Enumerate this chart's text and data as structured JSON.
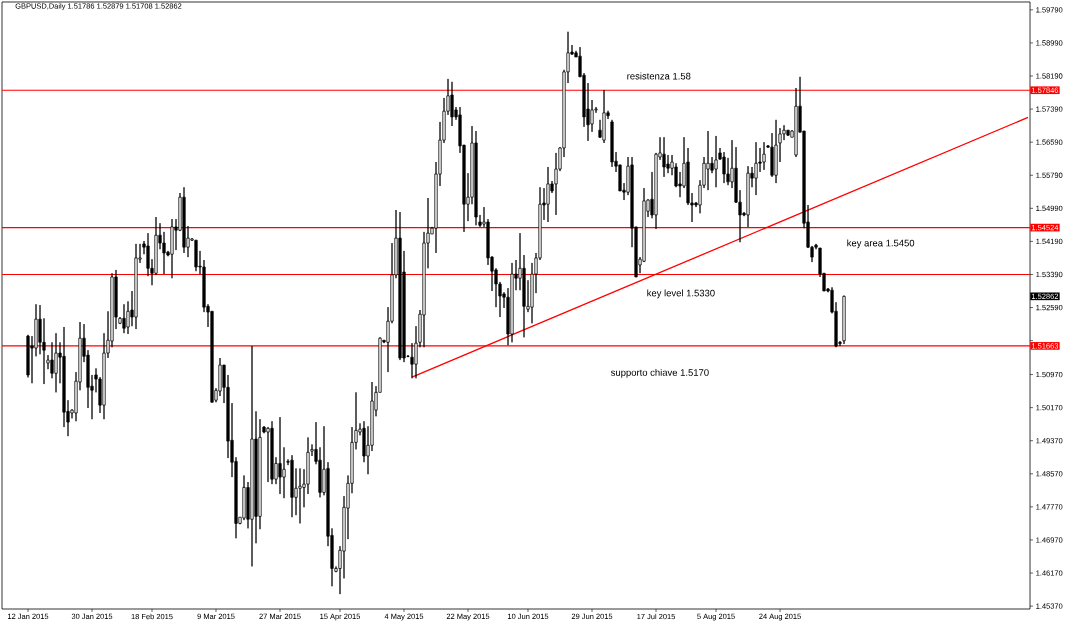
{
  "chart_data": {
    "type": "candlestick",
    "title": "GBPUSD,Daily 1.51786 1.52879 1.51708 1.52862",
    "categories": [
      "12 Jan 2015",
      null,
      null,
      null,
      null,
      null,
      null,
      null,
      null,
      null,
      null,
      null,
      null,
      null,
      null,
      null,
      "30 Jan 2015",
      null,
      null,
      null,
      null,
      null,
      null,
      null,
      null,
      null,
      null,
      null,
      null,
      null,
      null,
      "18 Feb 2015",
      null,
      null,
      null,
      null,
      null,
      null,
      null,
      null,
      null,
      null,
      null,
      null,
      null,
      null,
      null,
      "9 Mar 2015",
      null,
      null,
      null,
      null,
      null,
      null,
      null,
      null,
      null,
      null,
      null,
      null,
      null,
      null,
      null,
      "27 Mar 2015",
      null,
      null,
      null,
      null,
      null,
      null,
      null,
      null,
      null,
      null,
      null,
      null,
      null,
      null,
      "15 Apr 2015",
      null,
      null,
      null,
      null,
      null,
      null,
      null,
      null,
      null,
      null,
      null,
      null,
      null,
      null,
      null,
      "4 May 2015",
      null,
      null,
      null,
      null,
      null,
      null,
      null,
      null,
      null,
      null,
      null,
      null,
      null,
      null,
      null,
      "22 May 2015",
      null,
      null,
      null,
      null,
      null,
      null,
      null,
      null,
      null,
      null,
      null,
      null,
      null,
      null,
      "10 Jun 2015",
      null,
      null,
      null,
      null,
      null,
      null,
      null,
      null,
      null,
      null,
      null,
      null,
      null,
      null,
      null,
      "29 Jun 2015",
      null,
      null,
      null,
      null,
      null,
      null,
      null,
      null,
      null,
      null,
      null,
      null,
      null,
      null,
      null,
      "17 Jul 2015",
      null,
      null,
      null,
      null,
      null,
      null,
      null,
      null,
      null,
      null,
      null,
      null,
      null,
      null,
      "5 Aug 2015",
      null,
      null,
      null,
      null,
      null,
      null,
      null,
      null,
      null,
      null,
      null,
      null,
      null,
      null,
      null,
      "24 Aug 2015",
      null,
      null,
      null,
      null,
      null,
      null,
      null,
      null,
      null,
      null,
      null,
      null,
      null,
      null,
      null,
      null,
      null,
      null,
      null,
      null,
      null,
      null,
      null,
      null,
      null,
      null,
      null,
      null,
      null,
      null,
      null,
      null,
      null,
      null,
      null,
      null,
      null,
      null,
      null,
      null,
      null,
      null,
      null,
      null,
      null,
      null,
      null,
      null,
      null,
      null,
      null,
      null,
      null,
      null,
      null,
      null,
      null,
      null,
      null,
      null,
      null,
      null
    ],
    "ohlc": [
      [
        1.519,
        1.5193,
        1.509,
        1.5096
      ],
      [
        1.5166,
        1.519,
        1.5076,
        1.5161
      ],
      [
        1.5161,
        1.5267,
        1.5141,
        1.5231
      ],
      [
        1.5231,
        1.5265,
        1.5146,
        1.5175
      ],
      [
        1.5175,
        1.5233,
        1.5074,
        1.5156
      ],
      [
        1.5125,
        1.5144,
        1.511,
        1.5132
      ],
      [
        1.5132,
        1.5175,
        1.5088,
        1.51
      ],
      [
        1.51,
        1.5197,
        1.5054,
        1.5149
      ],
      [
        1.5149,
        1.5175,
        1.5076,
        1.5139
      ],
      [
        1.5141,
        1.5212,
        1.497,
        1.5006
      ],
      [
        1.5008,
        1.5035,
        1.4948,
        1.4982
      ],
      [
        1.5004,
        1.5013,
        1.4991,
        1.5011
      ],
      [
        1.5004,
        1.5103,
        1.4984,
        1.5081
      ],
      [
        1.5079,
        1.5224,
        1.5059,
        1.5185
      ],
      [
        1.5185,
        1.5219,
        1.5127,
        1.5141
      ],
      [
        1.5144,
        1.5156,
        1.5016,
        1.5066
      ],
      [
        1.5069,
        1.5096,
        1.4989,
        1.5059
      ],
      [
        1.5096,
        1.5112,
        1.5054,
        1.5086
      ],
      [
        1.5086,
        1.5091,
        1.5004,
        1.5023
      ],
      [
        1.5023,
        1.5197,
        1.4989,
        1.5149
      ],
      [
        1.5149,
        1.525,
        1.5137,
        1.518
      ],
      [
        1.5178,
        1.5342,
        1.5163,
        1.5333
      ],
      [
        1.5333,
        1.535,
        1.5207,
        1.5236
      ],
      [
        1.5221,
        1.5236,
        1.5219,
        1.5233
      ],
      [
        1.5233,
        1.5267,
        1.5197,
        1.5209
      ],
      [
        1.5212,
        1.5274,
        1.5195,
        1.525
      ],
      [
        1.5253,
        1.5299,
        1.5214,
        1.5236
      ],
      [
        1.5236,
        1.5413,
        1.5207,
        1.5379
      ],
      [
        1.5376,
        1.5413,
        1.5367,
        1.5379
      ],
      [
        1.5413,
        1.542,
        1.5388,
        1.5405
      ],
      [
        1.5408,
        1.5439,
        1.5335,
        1.5354
      ],
      [
        1.5354,
        1.5376,
        1.5313,
        1.5342
      ],
      [
        1.5342,
        1.5478,
        1.5338,
        1.5434
      ],
      [
        1.5434,
        1.5463,
        1.54,
        1.5415
      ],
      [
        1.5415,
        1.5442,
        1.534,
        1.5391
      ],
      [
        1.5393,
        1.5396,
        1.5383,
        1.5386
      ],
      [
        1.5388,
        1.5473,
        1.533,
        1.5454
      ],
      [
        1.5454,
        1.5473,
        1.5398,
        1.5446
      ],
      [
        1.5446,
        1.5536,
        1.5444,
        1.5526
      ],
      [
        1.5526,
        1.555,
        1.5391,
        1.5405
      ],
      [
        1.5405,
        1.5456,
        1.5381,
        1.5427
      ],
      [
        1.5422,
        1.5427,
        1.542,
        1.5425
      ],
      [
        1.5422,
        1.5422,
        1.5347,
        1.5357
      ],
      [
        1.5359,
        1.5396,
        1.534,
        1.5357
      ],
      [
        1.5357,
        1.5374,
        1.5248,
        1.526
      ],
      [
        1.5262,
        1.5267,
        1.5212,
        1.5248
      ],
      [
        1.525,
        1.525,
        1.503,
        1.503
      ],
      [
        1.5035,
        1.5064,
        1.503,
        1.5059
      ],
      [
        1.5057,
        1.5137,
        1.5045,
        1.512
      ],
      [
        1.512,
        1.512,
        1.5028,
        1.5066
      ],
      [
        1.5066,
        1.5096,
        1.4895,
        1.4936
      ],
      [
        1.4938,
        1.5028,
        1.4849,
        1.4885
      ],
      [
        1.4887,
        1.4897,
        1.4701,
        1.4737
      ],
      [
        1.4737,
        1.4752,
        1.4735,
        1.4752
      ],
      [
        1.475,
        1.4853,
        1.4745,
        1.4824
      ],
      [
        1.4824,
        1.4837,
        1.4725,
        1.4747
      ],
      [
        1.4747,
        1.5166,
        1.4633,
        1.4941
      ],
      [
        1.4941,
        1.5008,
        1.4689,
        1.4754
      ],
      [
        1.4754,
        1.4989,
        1.4723,
        1.4945
      ],
      [
        1.497,
        1.4972,
        1.4955,
        1.4958
      ],
      [
        1.4958,
        1.497,
        1.4837,
        1.4967
      ],
      [
        1.4967,
        1.4984,
        1.4832,
        1.4844
      ],
      [
        1.4844,
        1.4897,
        1.4832,
        1.4882
      ],
      [
        1.4882,
        1.4994,
        1.4808,
        1.4849
      ],
      [
        1.4849,
        1.4921,
        1.4798,
        1.4868
      ],
      [
        1.4887,
        1.4892,
        1.4878,
        1.4885
      ],
      [
        1.489,
        1.4902,
        1.4752,
        1.48
      ],
      [
        1.48,
        1.487,
        1.4757,
        1.4822
      ],
      [
        1.4822,
        1.487,
        1.4737,
        1.4827
      ],
      [
        1.4824,
        1.4868,
        1.4776,
        1.4832
      ],
      [
        1.4832,
        1.4945,
        1.4808,
        1.4909
      ],
      [
        1.4912,
        1.4928,
        1.49,
        1.4916
      ],
      [
        1.4916,
        1.4982,
        1.488,
        1.4887
      ],
      [
        1.489,
        1.4921,
        1.48,
        1.4812
      ],
      [
        1.4812,
        1.4972,
        1.4805,
        1.4868
      ],
      [
        1.487,
        1.4885,
        1.4682,
        1.4706
      ],
      [
        1.4708,
        1.4725,
        1.4585,
        1.4628
      ],
      [
        1.4621,
        1.4633,
        1.4619,
        1.4628
      ],
      [
        1.4628,
        1.4682,
        1.4566,
        1.4672
      ],
      [
        1.467,
        1.4803,
        1.4604,
        1.4776
      ],
      [
        1.4774,
        1.4853,
        1.4699,
        1.4834
      ],
      [
        1.4834,
        1.497,
        1.481,
        1.4933
      ],
      [
        1.4933,
        1.5054,
        1.4916,
        1.4962
      ],
      [
        1.4958,
        1.4979,
        1.495,
        1.4965
      ],
      [
        1.4967,
        1.4984,
        1.4885,
        1.49
      ],
      [
        1.49,
        1.4972,
        1.4856,
        1.4926
      ],
      [
        1.4926,
        1.5079,
        1.4912,
        1.5033
      ],
      [
        1.5011,
        1.5069,
        1.4996,
        1.5054
      ],
      [
        1.5054,
        1.5187,
        1.5054,
        1.5185
      ],
      [
        1.518,
        1.518,
        1.5173,
        1.5176
      ],
      [
        1.5175,
        1.526,
        1.5103,
        1.5226
      ],
      [
        1.5226,
        1.5415,
        1.5221,
        1.5338
      ],
      [
        1.5338,
        1.5495,
        1.533,
        1.5427
      ],
      [
        1.5427,
        1.549,
        1.5132,
        1.5137
      ],
      [
        1.5345,
        1.5396,
        1.5127,
        1.5137
      ],
      [
        1.5141,
        1.5144,
        1.5139,
        1.5141
      ],
      [
        1.5139,
        1.5173,
        1.5088,
        1.5122
      ],
      [
        1.5122,
        1.5214,
        1.5088,
        1.5173
      ],
      [
        1.5175,
        1.5253,
        1.5163,
        1.5243
      ],
      [
        1.5241,
        1.5442,
        1.5163,
        1.5415
      ],
      [
        1.5415,
        1.5524,
        1.5354,
        1.5439
      ],
      [
        1.5437,
        1.5454,
        1.5437,
        1.5451
      ],
      [
        1.5451,
        1.5611,
        1.5391,
        1.5582
      ],
      [
        1.5582,
        1.5708,
        1.5553,
        1.5664
      ],
      [
        1.5664,
        1.5766,
        1.5657,
        1.5734
      ],
      [
        1.5734,
        1.5812,
        1.5725,
        1.5771
      ],
      [
        1.5773,
        1.5805,
        1.5698,
        1.572
      ],
      [
        1.5737,
        1.5744,
        1.5713,
        1.572
      ],
      [
        1.5725,
        1.5744,
        1.5633,
        1.565
      ],
      [
        1.5652,
        1.5652,
        1.5442,
        1.5509
      ],
      [
        1.5509,
        1.5584,
        1.5468,
        1.5526
      ],
      [
        1.5526,
        1.5698,
        1.5509,
        1.5657
      ],
      [
        1.5657,
        1.5686,
        1.5458,
        1.5478
      ],
      [
        1.5466,
        1.5483,
        1.5454,
        1.5458
      ],
      [
        1.5461,
        1.5502,
        1.5454,
        1.5466
      ],
      [
        1.5466,
        1.5473,
        1.5362,
        1.5379
      ],
      [
        1.5381,
        1.5383,
        1.5299,
        1.5347
      ],
      [
        1.535,
        1.5354,
        1.526,
        1.5316
      ],
      [
        1.5316,
        1.5321,
        1.5236,
        1.5287
      ],
      [
        1.5292,
        1.5296,
        1.5258,
        1.5284
      ],
      [
        1.5284,
        1.5306,
        1.5168,
        1.5195
      ],
      [
        1.5195,
        1.5367,
        1.5175,
        1.534
      ],
      [
        1.534,
        1.5374,
        1.5301,
        1.533
      ],
      [
        1.533,
        1.5439,
        1.5301,
        1.5354
      ],
      [
        1.5354,
        1.5386,
        1.5187,
        1.5262
      ],
      [
        1.5255,
        1.5325,
        1.5248,
        1.5262
      ],
      [
        1.526,
        1.5367,
        1.5221,
        1.534
      ],
      [
        1.534,
        1.5391,
        1.5294,
        1.5379
      ],
      [
        1.5379,
        1.555,
        1.5374,
        1.5509
      ],
      [
        1.5512,
        1.5548,
        1.5471,
        1.5507
      ],
      [
        1.5509,
        1.5599,
        1.5466,
        1.5558
      ],
      [
        1.5558,
        1.5565,
        1.5536,
        1.5541
      ],
      [
        1.5558,
        1.5633,
        1.5483,
        1.5594
      ],
      [
        1.5594,
        1.5647,
        1.5589,
        1.5645
      ],
      [
        1.5645,
        1.5834,
        1.5623,
        1.5829
      ],
      [
        1.5829,
        1.5926,
        1.5802,
        1.5875
      ],
      [
        1.5877,
        1.5894,
        1.587,
        1.5872
      ],
      [
        1.5875,
        1.588,
        1.5865,
        1.5865
      ],
      [
        1.5867,
        1.5889,
        1.5817,
        1.5817
      ],
      [
        1.5821,
        1.5826,
        1.5696,
        1.572
      ],
      [
        1.5739,
        1.5802,
        1.5662,
        1.5701
      ],
      [
        1.5703,
        1.5761,
        1.5684,
        1.5737
      ],
      [
        1.5737,
        1.5744,
        1.573,
        1.5739
      ],
      [
        1.5688,
        1.5713,
        1.5669,
        1.5671
      ],
      [
        1.5664,
        1.5785,
        1.5657,
        1.573
      ],
      [
        1.573,
        1.5735,
        1.5715,
        1.5723
      ],
      [
        1.5708,
        1.5713,
        1.5599,
        1.5611
      ],
      [
        1.5613,
        1.5635,
        1.5587,
        1.5601
      ],
      [
        1.5604,
        1.5604,
        1.5541,
        1.5541
      ],
      [
        1.5543,
        1.556,
        1.5519,
        1.5538
      ],
      [
        1.5538,
        1.5623,
        1.5531,
        1.5601
      ],
      [
        1.5604,
        1.5623,
        1.5405,
        1.5451
      ],
      [
        1.5454,
        1.5454,
        1.5333,
        1.5333
      ],
      [
        1.5362,
        1.5381,
        1.5342,
        1.5376
      ],
      [
        1.5371,
        1.5548,
        1.5369,
        1.5517
      ],
      [
        1.5492,
        1.5521,
        1.5478,
        1.5519
      ],
      [
        1.5521,
        1.5587,
        1.5475,
        1.5483
      ],
      [
        1.5483,
        1.5633,
        1.5449,
        1.563
      ],
      [
        1.5623,
        1.5671,
        1.5616,
        1.5633
      ],
      [
        1.563,
        1.5671,
        1.5575,
        1.5599
      ],
      [
        1.5606,
        1.5628,
        1.5584,
        1.5596
      ],
      [
        1.5596,
        1.5628,
        1.5579,
        1.5611
      ],
      [
        1.5599,
        1.5608,
        1.555,
        1.5553
      ],
      [
        1.5558,
        1.5587,
        1.5526,
        1.5553
      ],
      [
        1.5553,
        1.5671,
        1.5548,
        1.5608
      ],
      [
        1.5611,
        1.5645,
        1.5507,
        1.5512
      ],
      [
        1.5512,
        1.5536,
        1.5466,
        1.5507
      ],
      [
        1.5512,
        1.5514,
        1.5502,
        1.5507
      ],
      [
        1.5507,
        1.5567,
        1.5487,
        1.5555
      ],
      [
        1.5555,
        1.5623,
        1.5548,
        1.5608
      ],
      [
        1.5594,
        1.5686,
        1.5543,
        1.5608
      ],
      [
        1.5608,
        1.5623,
        1.5584,
        1.5591
      ],
      [
        1.5594,
        1.5674,
        1.555,
        1.5616
      ],
      [
        1.5633,
        1.5645,
        1.5616,
        1.5618
      ],
      [
        1.5623,
        1.5635,
        1.556,
        1.5582
      ],
      [
        1.5582,
        1.5621,
        1.5555,
        1.5563
      ],
      [
        1.5563,
        1.5664,
        1.5548,
        1.5596
      ],
      [
        1.5596,
        1.5647,
        1.5512,
        1.5514
      ],
      [
        1.5514,
        1.5543,
        1.5417,
        1.5483
      ],
      [
        1.5487,
        1.549,
        1.548,
        1.5483
      ],
      [
        1.5483,
        1.5601,
        1.5454,
        1.5584
      ],
      [
        1.5584,
        1.5599,
        1.555,
        1.5572
      ],
      [
        1.5572,
        1.5659,
        1.5531,
        1.5608
      ],
      [
        1.5611,
        1.5645,
        1.5587,
        1.5608
      ],
      [
        1.5611,
        1.5659,
        1.5592,
        1.563
      ],
      [
        1.565,
        1.5652,
        1.5645,
        1.5647
      ],
      [
        1.5647,
        1.5681,
        1.5575,
        1.5579
      ],
      [
        1.5579,
        1.5713,
        1.556,
        1.5652
      ],
      [
        1.5657,
        1.5693,
        1.5611,
        1.5679
      ],
      [
        1.5679,
        1.57,
        1.5664,
        1.5688
      ],
      [
        1.5688,
        1.5688,
        1.5674,
        1.5676
      ],
      [
        1.5671,
        1.5688,
        1.5671,
        1.5686
      ],
      [
        1.5628,
        1.579,
        1.5623,
        1.5746
      ],
      [
        1.5746,
        1.5817,
        1.5683,
        1.5683
      ],
      [
        1.5686,
        1.5686,
        1.5451,
        1.5463
      ],
      [
        1.5466,
        1.5507,
        1.5403,
        1.5405
      ],
      [
        1.5405,
        1.5408,
        1.5369,
        1.5381
      ],
      [
        1.541,
        1.5413,
        1.54,
        1.5405
      ],
      [
        1.5403,
        1.5403,
        1.5333,
        1.534
      ],
      [
        1.5342,
        1.5342,
        1.5299,
        1.5299
      ],
      [
        1.5304,
        1.5306,
        1.5296,
        1.5299
      ],
      [
        1.5301,
        1.5308,
        1.5245,
        1.5248
      ],
      [
        1.525,
        1.5272,
        1.5163,
        1.5166
      ],
      [
        1.5175,
        1.5178,
        1.5166,
        1.5172
      ],
      [
        1.51786,
        1.52879,
        1.51708,
        1.52862
      ],
      null,
      null,
      null,
      null,
      null,
      null,
      null,
      null,
      null,
      null,
      null,
      null,
      null,
      null,
      null,
      null,
      null,
      null,
      null,
      null,
      null,
      null,
      null,
      null,
      null,
      null,
      null,
      null,
      null,
      null,
      null,
      null,
      null,
      null,
      null,
      null,
      null,
      null,
      null,
      null,
      null,
      null,
      null,
      null,
      null,
      null
    ],
    "series": [
      {
        "type": "line",
        "color": "#ff0000",
        "values": [
          null,
          null,
          null,
          null,
          null,
          null,
          null,
          null,
          null,
          null,
          null,
          null,
          null,
          null,
          null,
          null,
          null,
          null,
          null,
          null,
          null,
          null,
          null,
          null,
          null,
          null,
          null,
          null,
          null,
          null,
          null,
          null,
          null,
          null,
          null,
          null,
          null,
          null,
          null,
          null,
          null,
          null,
          null,
          null,
          null,
          null,
          null,
          null,
          null,
          null,
          null,
          null,
          null,
          null,
          null,
          null,
          null,
          null,
          null,
          null,
          null,
          null,
          null,
          null,
          null,
          null,
          null,
          null,
          null,
          null,
          null,
          null,
          null,
          null,
          null,
          null,
          null,
          null,
          null,
          null,
          null,
          null,
          null,
          null,
          null,
          null,
          null,
          null,
          null,
          null,
          null,
          null,
          null,
          null,
          null,
          null,
          1.5091,
          null,
          null,
          null,
          null,
          null,
          null,
          null,
          null,
          null,
          null,
          null,
          null,
          null,
          null,
          null,
          null,
          null,
          null,
          null,
          null,
          null,
          null,
          null,
          null,
          null,
          null,
          null,
          null,
          null,
          null,
          null,
          null,
          null,
          null,
          null,
          null,
          null,
          null,
          null,
          null,
          null,
          null,
          null,
          null,
          null,
          null,
          null,
          null,
          null,
          null,
          null,
          null,
          null,
          null,
          null,
          null,
          null,
          null,
          null,
          null,
          null,
          null,
          null,
          null,
          null,
          null,
          null,
          null,
          null,
          null,
          null,
          null,
          null,
          null,
          null,
          null,
          null,
          null,
          null,
          null,
          null,
          null,
          null,
          null,
          null,
          null,
          null,
          null,
          null,
          null,
          null,
          null,
          null,
          null,
          null,
          null,
          null,
          null,
          null,
          null,
          null,
          null,
          null,
          null,
          null,
          null,
          null,
          null,
          null,
          null,
          null,
          null,
          null,
          null,
          null,
          null,
          null,
          null,
          null,
          null,
          null,
          null,
          null,
          null,
          null,
          null,
          null,
          null,
          null,
          null,
          null,
          null,
          null,
          null,
          null,
          null,
          null,
          null,
          null,
          null,
          null,
          null,
          null,
          null,
          null,
          null,
          null,
          null,
          null,
          null,
          null,
          null,
          null,
          1.5719
        ]
      }
    ],
    "ylim": [
      1.453,
      1.5998
    ],
    "yticks": [
      {
        "value": 1.5979,
        "label": "1.59790"
      },
      {
        "value": 1.5899,
        "label": "1.58990"
      },
      {
        "value": 1.5819,
        "label": "1.58190"
      },
      {
        "value": 1.5739,
        "label": "1.57390"
      },
      {
        "value": 1.5659,
        "label": "1.56590"
      },
      {
        "value": 1.5579,
        "label": "1.55790"
      },
      {
        "value": 1.5499,
        "label": "1.54990"
      },
      {
        "value": 1.5419,
        "label": "1.54190"
      },
      {
        "value": 1.5339,
        "label": "1.53390"
      },
      {
        "value": 1.5259,
        "label": "1.52590"
      },
      {
        "value": 1.5179,
        "label": null
      },
      {
        "value": 1.5097,
        "label": "1.50970"
      },
      {
        "value": 1.5017,
        "label": "1.50170"
      },
      {
        "value": 1.4937,
        "label": "1.49370"
      },
      {
        "value": 1.4857,
        "label": "1.48570"
      },
      {
        "value": 1.4777,
        "label": "1.47770"
      },
      {
        "value": 1.4697,
        "label": "1.46970"
      },
      {
        "value": 1.4617,
        "label": "1.46170"
      },
      {
        "value": 1.4537,
        "label": "1.45370"
      }
    ],
    "ref_lines": [
      {
        "axis": "y",
        "value": 1.57846,
        "label": "1.57846",
        "color": "#ff0000"
      },
      {
        "axis": "y",
        "value": 1.54524,
        "label": "1.54524",
        "color": "#ff0000"
      },
      {
        "axis": "y",
        "value": 1.51663,
        "label": "1.51663",
        "color": "#ff0000"
      },
      {
        "axis": "y",
        "value": 1.5339,
        "color": "#ff0000"
      }
    ],
    "annotations": [
      "resistenza 1.58",
      "key area 1.5450",
      "key level 1.5330",
      "supporto chiave 1.5170",
      "1.52862"
    ]
  }
}
